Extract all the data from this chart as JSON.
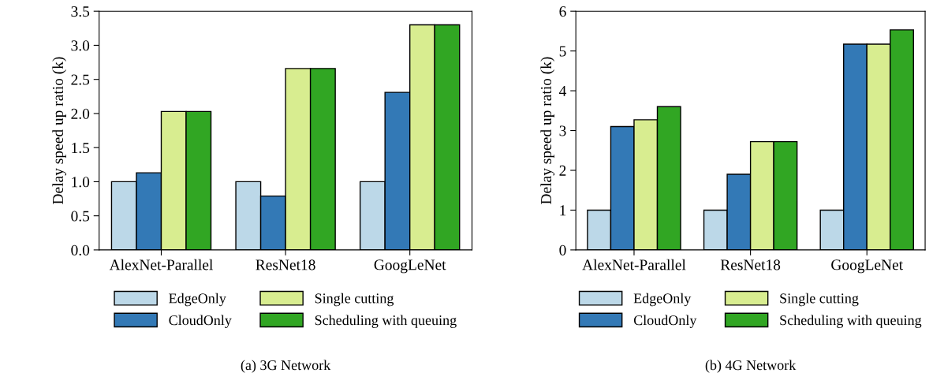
{
  "chart_data": [
    {
      "type": "bar",
      "title": "(a) 3G Network",
      "ylabel": "Delay speed up ratio (k)",
      "categories": [
        "AlexNet-Parallel",
        "ResNet18",
        "GoogLeNet"
      ],
      "series": [
        {
          "name": "EdgeOnly",
          "color": "#bcd8e8",
          "values": [
            1.0,
            1.0,
            1.0
          ]
        },
        {
          "name": "CloudOnly",
          "color": "#3379b6",
          "values": [
            1.13,
            0.79,
            2.31
          ]
        },
        {
          "name": "Single cutting",
          "color": "#d8ed90",
          "values": [
            2.03,
            2.66,
            3.3
          ]
        },
        {
          "name": "Scheduling with queuing",
          "color": "#31a623",
          "values": [
            2.03,
            2.66,
            3.3
          ]
        }
      ],
      "ylim": [
        0,
        3.5
      ],
      "yticks": [
        {
          "value": 0,
          "label": "0.0"
        },
        {
          "value": 0.5,
          "label": "0.5"
        },
        {
          "value": 1,
          "label": "1.0"
        },
        {
          "value": 1.5,
          "label": "1.5"
        },
        {
          "value": 2,
          "label": "2.0"
        },
        {
          "value": 2.5,
          "label": "2.5"
        },
        {
          "value": 3,
          "label": "3.0"
        },
        {
          "value": 3.5,
          "label": "3.5"
        }
      ],
      "legend": "bottom",
      "grid": false
    },
    {
      "type": "bar",
      "title": "(b) 4G Network",
      "ylabel": "Delay speed up ratio (k)",
      "categories": [
        "AlexNet-Parallel",
        "ResNet18",
        "GoogLeNet"
      ],
      "series": [
        {
          "name": "EdgeOnly",
          "color": "#bcd8e8",
          "values": [
            1,
            1,
            1
          ]
        },
        {
          "name": "CloudOnly",
          "color": "#3379b6",
          "values": [
            3.1,
            1.9,
            5.17
          ]
        },
        {
          "name": "Single cutting",
          "color": "#d8ed90",
          "values": [
            3.27,
            2.72,
            5.17
          ]
        },
        {
          "name": "Scheduling with queuing",
          "color": "#31a623",
          "values": [
            3.6,
            2.72,
            5.53
          ]
        }
      ],
      "ylim": [
        0,
        6
      ],
      "yticks": [
        0,
        1,
        2,
        3,
        4,
        5,
        6
      ],
      "legend": "bottom",
      "grid": false
    }
  ]
}
